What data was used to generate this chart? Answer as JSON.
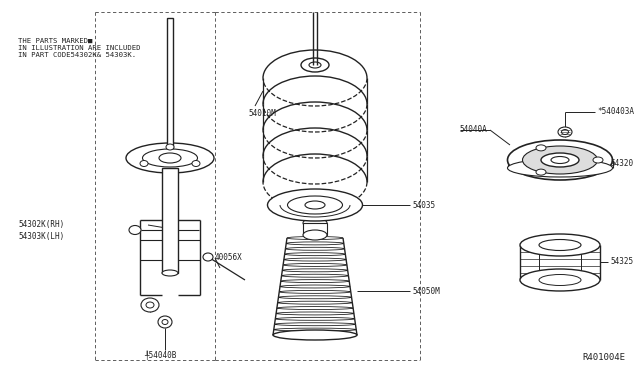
{
  "bg_color": "#ffffff",
  "line_color": "#444444",
  "dark_color": "#222222",
  "fig_width": 6.4,
  "fig_height": 3.72,
  "dpi": 100,
  "title_note": "THE PARTS MARKED■\nIN ILLUSTRATION ARE INCLUDED\nIN PART CODE54302K& 54303K.",
  "ref_code": "R401004E",
  "label_54302": "54302K(RH)",
  "label_54303": "54303K(LH)",
  "label_40056": "40056X",
  "label_54010": "54010M",
  "label_54035": "54035",
  "label_54050": "54050M",
  "label_54040A": "54040A",
  "label_540403A": "*540403A",
  "label_54320": "54320",
  "label_54325": "54325",
  "label_54040B": "╀54040B"
}
